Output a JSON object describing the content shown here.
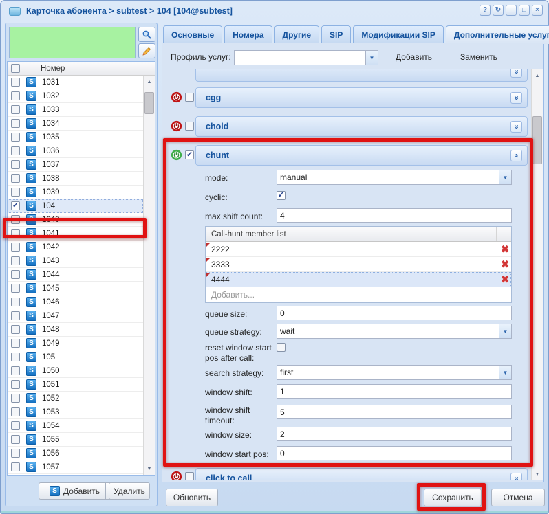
{
  "window": {
    "title": "Карточка абонента > subtest > 104 [104@subtest]",
    "controls": [
      {
        "name": "help-button",
        "glyph": "?"
      },
      {
        "name": "refresh-window-button",
        "glyph": "↻"
      },
      {
        "name": "minimize-button",
        "glyph": "–"
      },
      {
        "name": "maximize-button",
        "glyph": "□"
      },
      {
        "name": "close-button",
        "glyph": "×"
      }
    ]
  },
  "colors": {
    "accent_blue": "#15539e",
    "annotation_red": "#e01212",
    "search_green": "#a7f2a1"
  },
  "subscriber_list": {
    "column_header": "Номер",
    "rows": [
      {
        "number": "1031"
      },
      {
        "number": "1032"
      },
      {
        "number": "1033"
      },
      {
        "number": "1034"
      },
      {
        "number": "1035"
      },
      {
        "number": "1036"
      },
      {
        "number": "1037"
      },
      {
        "number": "1038"
      },
      {
        "number": "1039"
      },
      {
        "number": "104",
        "checked": true,
        "selected": true
      },
      {
        "number": "1040"
      },
      {
        "number": "1041"
      },
      {
        "number": "1042"
      },
      {
        "number": "1043"
      },
      {
        "number": "1044"
      },
      {
        "number": "1045"
      },
      {
        "number": "1046"
      },
      {
        "number": "1047"
      },
      {
        "number": "1048"
      },
      {
        "number": "1049"
      },
      {
        "number": "105"
      },
      {
        "number": "1050"
      },
      {
        "number": "1051"
      },
      {
        "number": "1052"
      },
      {
        "number": "1053"
      },
      {
        "number": "1054"
      },
      {
        "number": "1055"
      },
      {
        "number": "1056"
      },
      {
        "number": "1057"
      }
    ],
    "add_button": "Добавить",
    "delete_button": "Удалить"
  },
  "tabs": {
    "active_index": 5,
    "items": [
      {
        "label": "Основные"
      },
      {
        "label": "Номера"
      },
      {
        "label": "Другие"
      },
      {
        "label": "SIP"
      },
      {
        "label": "Модификации SIP"
      },
      {
        "label": "Дополнительные услуги"
      }
    ]
  },
  "profile_row": {
    "label": "Профиль услуг:",
    "combo_value": "",
    "add_label": "Добавить",
    "replace_label": "Заменить"
  },
  "services": {
    "sections": [
      {
        "name": "cgg",
        "enabled": false,
        "checked": false,
        "state": "collapsed"
      },
      {
        "name": "chold",
        "enabled": false,
        "checked": false,
        "state": "collapsed"
      },
      {
        "name": "chunt",
        "enabled": true,
        "checked": true,
        "state": "expanded"
      },
      {
        "name": "click to call",
        "enabled": false,
        "checked": false,
        "state": "collapsed"
      }
    ],
    "chunt_form": {
      "mode": {
        "label": "mode:",
        "value": "manual",
        "type": "combo"
      },
      "cyclic": {
        "label": "cyclic:",
        "checked": true,
        "type": "checkbox"
      },
      "max_shift_count": {
        "label": "max shift count:",
        "value": "4",
        "type": "text"
      },
      "member_list": {
        "header": "Call-hunt member list",
        "rows": [
          "2222",
          "3333",
          "4444"
        ],
        "selected": "4444",
        "add_placeholder": "Добавить..."
      },
      "queue_size": {
        "label": "queue size:",
        "value": "0",
        "type": "text"
      },
      "queue_strategy": {
        "label": "queue strategy:",
        "value": "wait",
        "type": "combo"
      },
      "reset_window_start_pos": {
        "label": "reset window start pos after call:",
        "checked": false,
        "type": "checkbox"
      },
      "search_strategy": {
        "label": "search strategy:",
        "value": "first",
        "type": "combo"
      },
      "window_shift": {
        "label": "window shift:",
        "value": "1",
        "type": "text"
      },
      "window_shift_timeout": {
        "label": "window shift timeout:",
        "value": "5",
        "type": "text"
      },
      "window_size": {
        "label": "window size:",
        "value": "2",
        "type": "text"
      },
      "window_start_pos": {
        "label": "window start pos:",
        "value": "0",
        "type": "text"
      }
    }
  },
  "footer": {
    "refresh_button": "Обновить",
    "save_button": "Сохранить",
    "cancel_button": "Отмена"
  },
  "annotations": {
    "color": "#e01212",
    "targets": [
      "subscriber-row-104",
      "chunt-section",
      "save-button"
    ]
  }
}
